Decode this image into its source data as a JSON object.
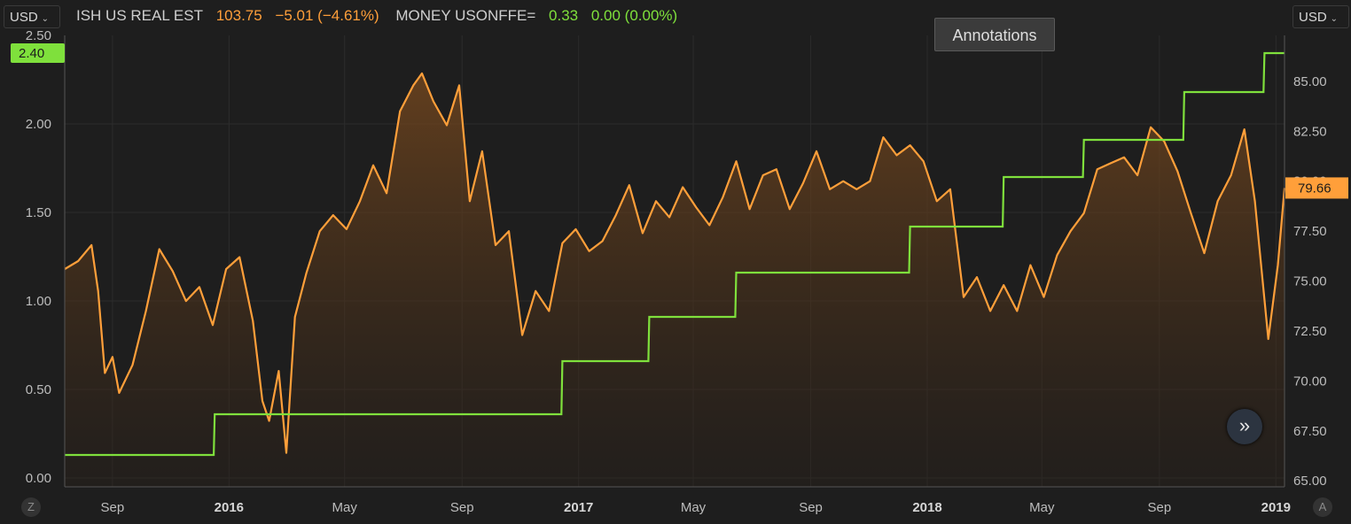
{
  "header": {
    "left_currency": "USD",
    "right_currency": "USD",
    "series1_name": "ISH US REAL EST",
    "series1_price": "103.75",
    "series1_change": "−5.01 (−4.61%)",
    "series2_name": "MONEY USONFFE=",
    "series2_price": "0.33",
    "series2_change": "0.00 (0.00%)",
    "annotations_label": "Annotations",
    "left_corner": "Z",
    "right_corner": "A"
  },
  "colors": {
    "orange": "#ff9f3a",
    "green": "#7fe03c",
    "background": "#1e1e1e"
  },
  "icons": {
    "scroll_right": "double-chevron-right-icon",
    "dropdown": "chevron-down-icon"
  },
  "chart_data": {
    "type": "line",
    "x_range": [
      "2015-07-13",
      "2019-01-10"
    ],
    "x_ticks": [
      "Sep",
      "2016",
      "May",
      "Sep",
      "2017",
      "May",
      "Sep",
      "2018",
      "May",
      "Sep",
      "2019"
    ],
    "left_axis": {
      "ticks": [
        "2.50",
        "2.00",
        "1.50",
        "1.00",
        "0.50",
        "0.00"
      ],
      "ylim": [
        -0.05,
        2.5
      ],
      "last_value_label": "2.40"
    },
    "right_axis": {
      "ticks": [
        "85.00",
        "82.50",
        "80.00",
        "77.50",
        "75.00",
        "72.50",
        "70.00",
        "67.50",
        "65.00"
      ],
      "ylim": [
        64.7,
        87.3
      ],
      "last_value_label": "79.66"
    },
    "grid": true,
    "series": [
      {
        "name": "ISH US REAL EST",
        "axis": "right",
        "points": [
          [
            "2015-07-13",
            75.6
          ],
          [
            "2015-07-27",
            76.0
          ],
          [
            "2015-08-10",
            76.8
          ],
          [
            "2015-08-17",
            74.5
          ],
          [
            "2015-08-24",
            70.4
          ],
          [
            "2015-09-01",
            71.2
          ],
          [
            "2015-09-08",
            69.4
          ],
          [
            "2015-09-22",
            70.8
          ],
          [
            "2015-10-06",
            73.5
          ],
          [
            "2015-10-20",
            76.6
          ],
          [
            "2015-11-03",
            75.5
          ],
          [
            "2015-11-17",
            74.0
          ],
          [
            "2015-12-01",
            74.7
          ],
          [
            "2015-12-15",
            72.8
          ],
          [
            "2015-12-29",
            75.6
          ],
          [
            "2016-01-12",
            76.2
          ],
          [
            "2016-01-26",
            73.0
          ],
          [
            "2016-02-05",
            69.0
          ],
          [
            "2016-02-12",
            68.0
          ],
          [
            "2016-02-22",
            70.5
          ],
          [
            "2016-03-01",
            66.4
          ],
          [
            "2016-03-10",
            73.2
          ],
          [
            "2016-03-22",
            75.4
          ],
          [
            "2016-04-05",
            77.5
          ],
          [
            "2016-04-19",
            78.3
          ],
          [
            "2016-05-03",
            77.6
          ],
          [
            "2016-05-17",
            79.0
          ],
          [
            "2016-05-31",
            80.8
          ],
          [
            "2016-06-14",
            79.4
          ],
          [
            "2016-06-28",
            83.5
          ],
          [
            "2016-07-12",
            84.8
          ],
          [
            "2016-07-21",
            85.4
          ],
          [
            "2016-08-02",
            84.0
          ],
          [
            "2016-08-16",
            82.8
          ],
          [
            "2016-08-29",
            84.8
          ],
          [
            "2016-09-09",
            79.0
          ],
          [
            "2016-09-22",
            81.5
          ],
          [
            "2016-10-06",
            76.8
          ],
          [
            "2016-10-20",
            77.5
          ],
          [
            "2016-11-03",
            72.3
          ],
          [
            "2016-11-17",
            74.5
          ],
          [
            "2016-12-01",
            73.5
          ],
          [
            "2016-12-15",
            76.9
          ],
          [
            "2016-12-29",
            77.6
          ],
          [
            "2017-01-12",
            76.5
          ],
          [
            "2017-01-26",
            77.0
          ],
          [
            "2017-02-09",
            78.3
          ],
          [
            "2017-02-23",
            79.8
          ],
          [
            "2017-03-09",
            77.4
          ],
          [
            "2017-03-23",
            79.0
          ],
          [
            "2017-04-06",
            78.2
          ],
          [
            "2017-04-20",
            79.7
          ],
          [
            "2017-05-04",
            78.7
          ],
          [
            "2017-05-18",
            77.8
          ],
          [
            "2017-06-01",
            79.2
          ],
          [
            "2017-06-15",
            81.0
          ],
          [
            "2017-06-29",
            78.6
          ],
          [
            "2017-07-13",
            80.3
          ],
          [
            "2017-07-27",
            80.6
          ],
          [
            "2017-08-10",
            78.6
          ],
          [
            "2017-08-24",
            79.9
          ],
          [
            "2017-09-07",
            81.5
          ],
          [
            "2017-09-21",
            79.6
          ],
          [
            "2017-10-05",
            80.0
          ],
          [
            "2017-10-19",
            79.6
          ],
          [
            "2017-11-02",
            80.0
          ],
          [
            "2017-11-16",
            82.2
          ],
          [
            "2017-11-30",
            81.3
          ],
          [
            "2017-12-14",
            81.8
          ],
          [
            "2017-12-28",
            81.0
          ],
          [
            "2018-01-11",
            79.0
          ],
          [
            "2018-01-25",
            79.6
          ],
          [
            "2018-02-08",
            74.2
          ],
          [
            "2018-02-22",
            75.2
          ],
          [
            "2018-03-08",
            73.5
          ],
          [
            "2018-03-22",
            74.8
          ],
          [
            "2018-04-05",
            73.5
          ],
          [
            "2018-04-19",
            75.8
          ],
          [
            "2018-05-03",
            74.2
          ],
          [
            "2018-05-17",
            76.3
          ],
          [
            "2018-05-31",
            77.5
          ],
          [
            "2018-06-14",
            78.4
          ],
          [
            "2018-06-28",
            80.6
          ],
          [
            "2018-07-12",
            80.9
          ],
          [
            "2018-07-26",
            81.2
          ],
          [
            "2018-08-09",
            80.3
          ],
          [
            "2018-08-23",
            82.7
          ],
          [
            "2018-09-06",
            82.0
          ],
          [
            "2018-09-20",
            80.5
          ],
          [
            "2018-10-04",
            78.4
          ],
          [
            "2018-10-18",
            76.4
          ],
          [
            "2018-11-01",
            79.0
          ],
          [
            "2018-11-15",
            80.3
          ],
          [
            "2018-11-29",
            82.6
          ],
          [
            "2018-12-10",
            79.0
          ],
          [
            "2018-12-24",
            72.1
          ],
          [
            "2019-01-03",
            75.8
          ],
          [
            "2019-01-10",
            79.66
          ]
        ]
      },
      {
        "name": "MONEY USONFFE=",
        "axis": "left",
        "points": [
          [
            "2015-07-13",
            0.13
          ],
          [
            "2015-12-16",
            0.13
          ],
          [
            "2015-12-17",
            0.36
          ],
          [
            "2016-12-14",
            0.36
          ],
          [
            "2016-12-15",
            0.66
          ],
          [
            "2017-03-15",
            0.66
          ],
          [
            "2017-03-16",
            0.91
          ],
          [
            "2017-06-14",
            0.91
          ],
          [
            "2017-06-15",
            1.16
          ],
          [
            "2017-12-13",
            1.16
          ],
          [
            "2017-12-14",
            1.42
          ],
          [
            "2018-03-21",
            1.42
          ],
          [
            "2018-03-22",
            1.7
          ],
          [
            "2018-06-13",
            1.7
          ],
          [
            "2018-06-14",
            1.91
          ],
          [
            "2018-09-26",
            1.91
          ],
          [
            "2018-09-27",
            2.18
          ],
          [
            "2018-12-19",
            2.18
          ],
          [
            "2018-12-20",
            2.4
          ],
          [
            "2019-01-10",
            2.4
          ]
        ]
      }
    ]
  }
}
